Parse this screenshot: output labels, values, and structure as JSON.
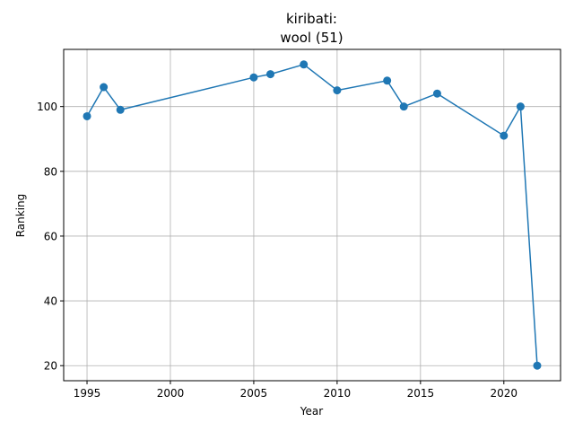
{
  "chart_data": {
    "type": "line",
    "title_line1": "kiribati:",
    "title_line2": "wool (51)",
    "xlabel": "Year",
    "ylabel": "Ranking",
    "xlim": [
      1993.6,
      2023.4
    ],
    "ylim": [
      15.35,
      117.65
    ],
    "xticks": [
      1995,
      2000,
      2005,
      2010,
      2015,
      2020
    ],
    "yticks": [
      20,
      40,
      60,
      80,
      100
    ],
    "grid": true,
    "color": "#1f77b4",
    "series": [
      {
        "x": [
          1995,
          1996,
          1997,
          2005,
          2006,
          2008,
          2010,
          2013,
          2014,
          2016,
          2020,
          2021,
          2022
        ],
        "y": [
          97,
          106,
          99,
          109,
          110,
          113,
          105,
          108,
          100,
          104,
          91,
          100,
          20
        ]
      }
    ]
  }
}
